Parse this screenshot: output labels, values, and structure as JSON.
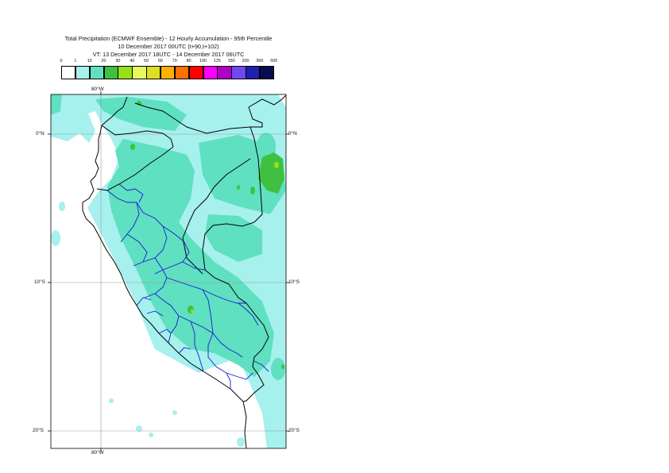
{
  "title": {
    "line1": "Total Precipitation (ECMWF Ensemble) - 12 Hourly Accumulation - 95th Percentile",
    "line2": "10 December 2017 00UTC (t+90,t+102)",
    "line3": "VT: 13 December 2017 18UTC - 14 December 2017 06UTC"
  },
  "legend": {
    "labels": [
      "0",
      "1",
      "10",
      "20",
      "30",
      "40",
      "50",
      "60",
      "70",
      "80",
      "100",
      "125",
      "150",
      "200",
      "300",
      "500"
    ],
    "colors": [
      "#ffffff",
      "#a6f0ee",
      "#5fe0c0",
      "#40c040",
      "#98e018",
      "#e8f860",
      "#dce020",
      "#ffb000",
      "#ff7000",
      "#ff0000",
      "#ff00ff",
      "#b000c8",
      "#7048f0",
      "#2020b0",
      "#0a0a50"
    ]
  },
  "axes": {
    "top_lon": "80°W",
    "bottom_lon": "80°W",
    "lat_labels": [
      "0°N",
      "10°S",
      "20°S"
    ]
  }
}
